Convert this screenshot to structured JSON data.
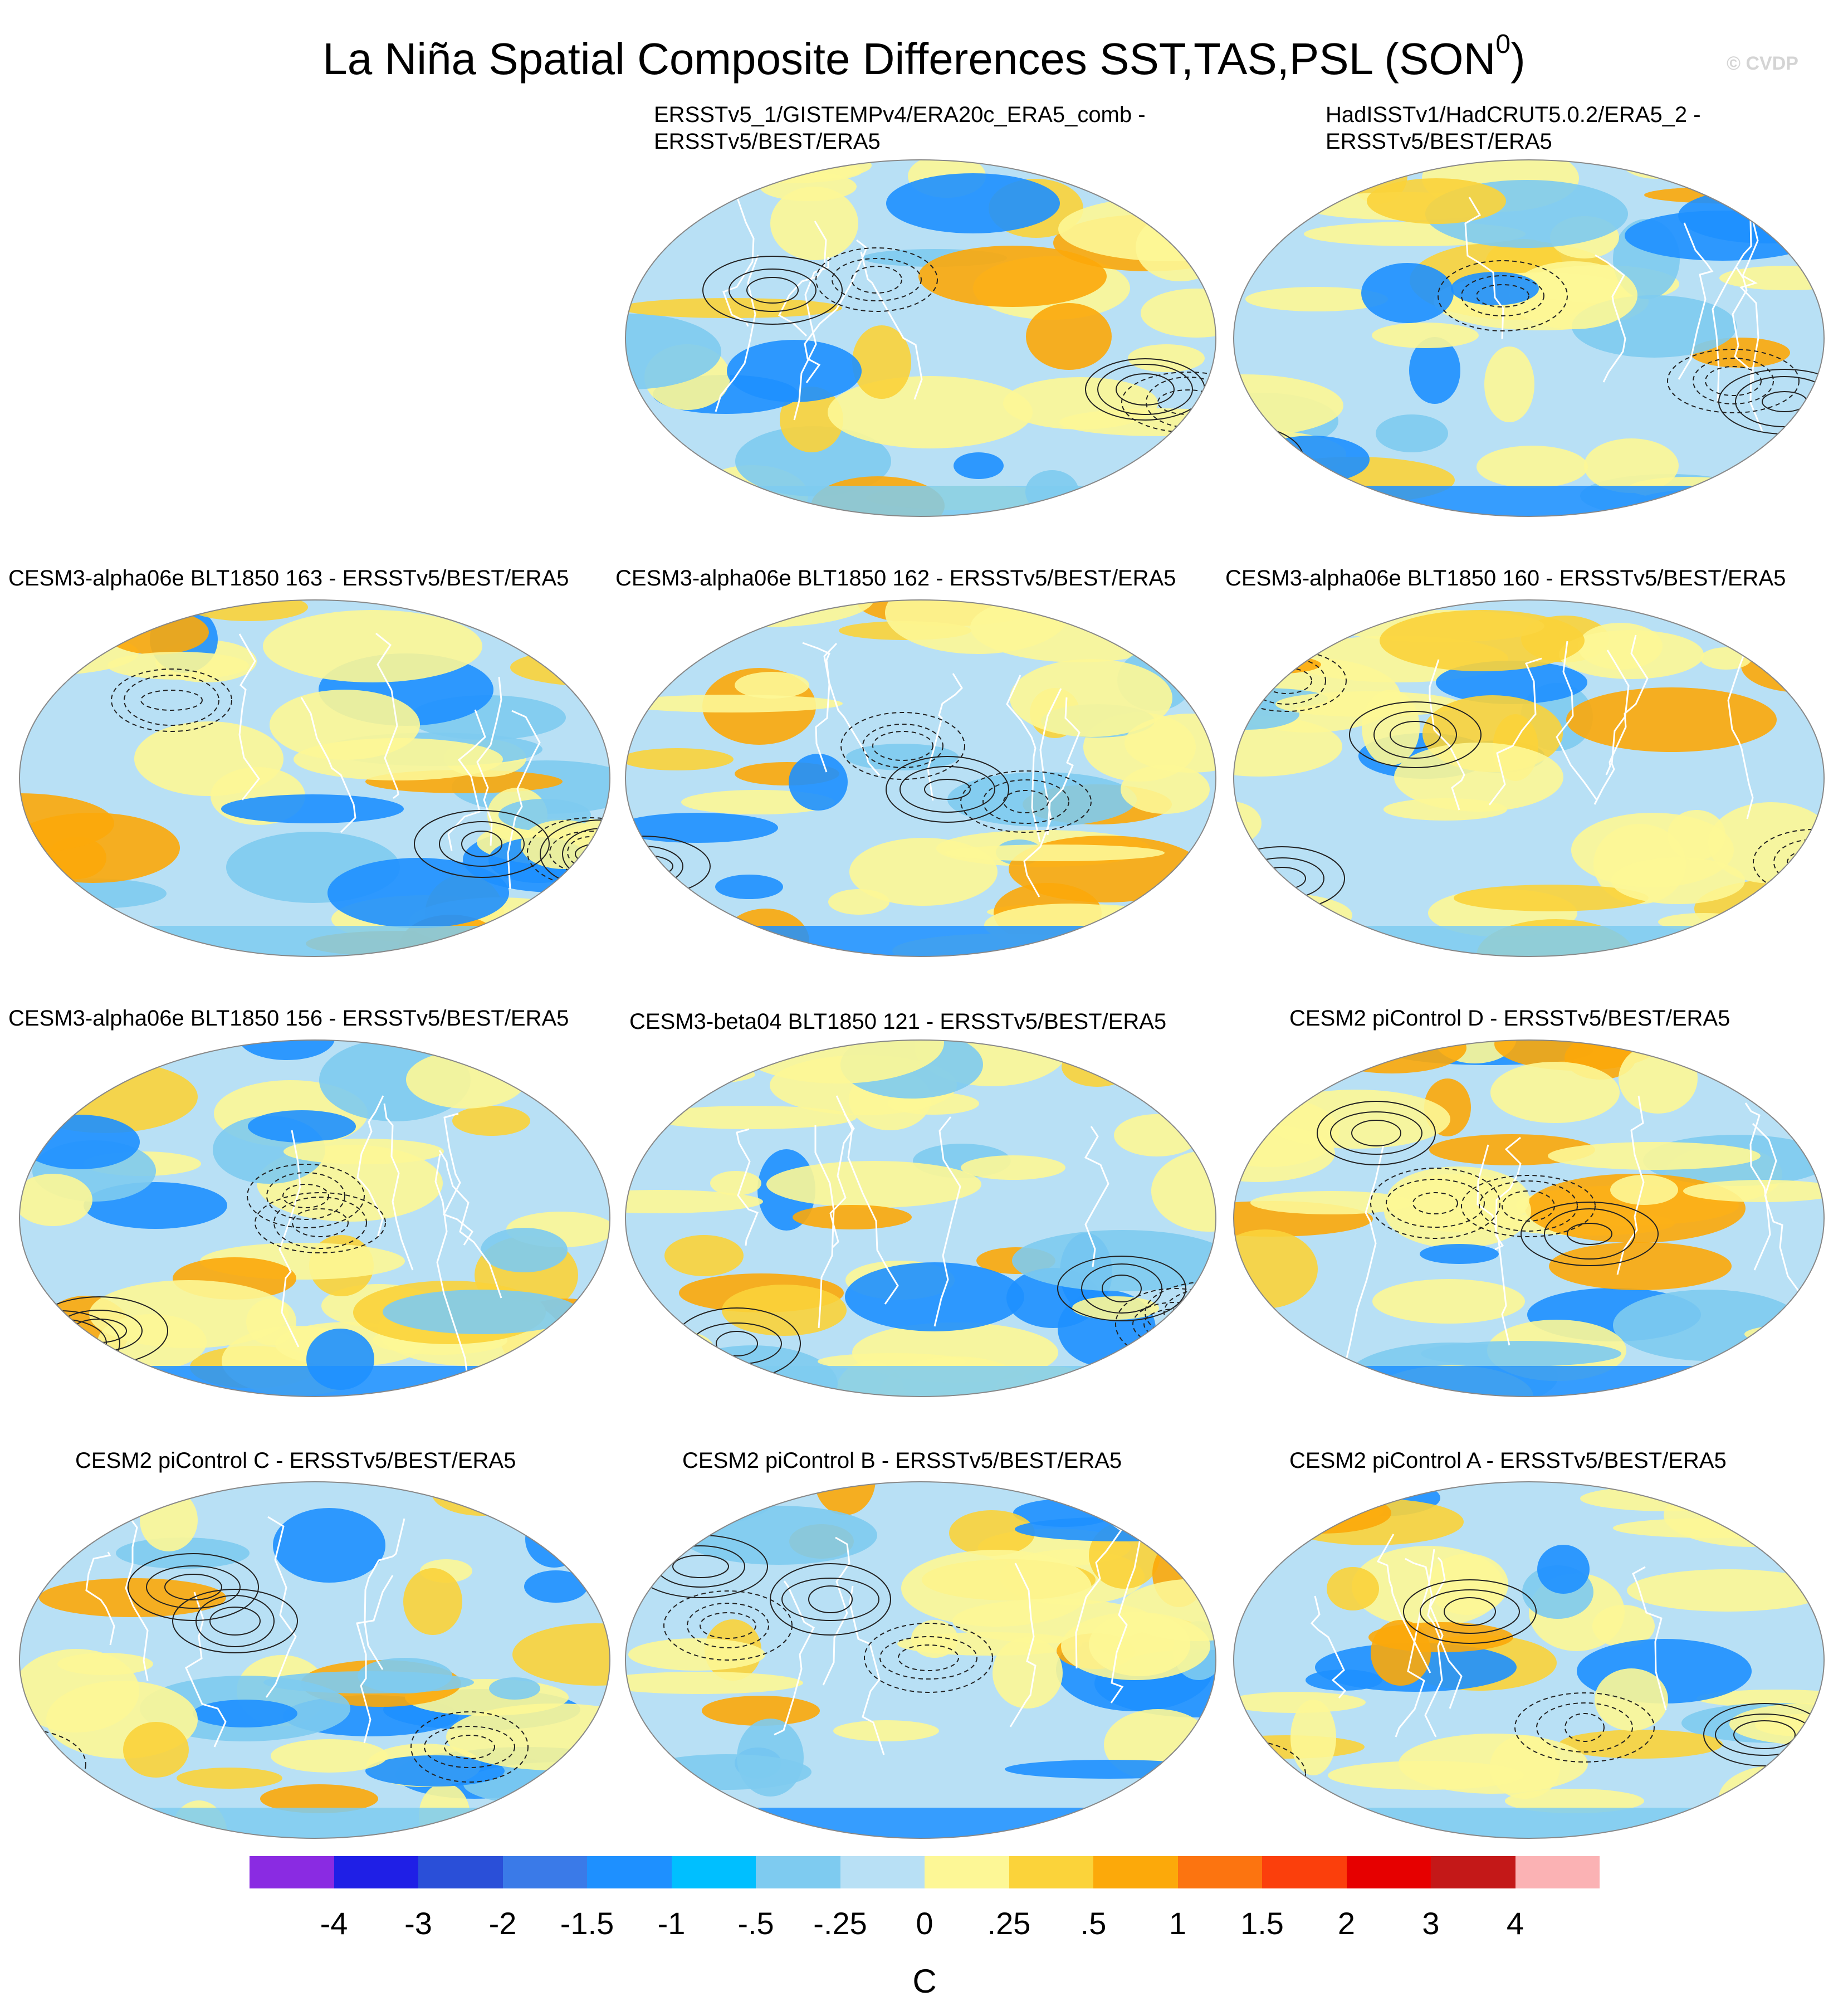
{
  "figure": {
    "title": "La Niña Spatial Composite Differences SST,TAS,PSL (SON",
    "title_superscript": "0",
    "title_close": ")",
    "copyright": "© CVDP"
  },
  "panels": [
    {
      "line1": "ERSSTv5_1/GISTEMPv4/ERA20c_ERA5_comb -",
      "line2": "ERSSTv5/BEST/ERA5"
    },
    {
      "line1": "HadISSTv1/HadCRUT5.0.2/ERA5_2 -",
      "line2": "ERSSTv5/BEST/ERA5"
    },
    {
      "line1": "CESM3-alpha06e BLT1850 163 - ERSSTv5/BEST/ERA5"
    },
    {
      "line1": "CESM3-alpha06e BLT1850 162 - ERSSTv5/BEST/ERA5"
    },
    {
      "line1": "CESM3-alpha06e BLT1850 160 - ERSSTv5/BEST/ERA5"
    },
    {
      "line1": "CESM3-alpha06e BLT1850 156 - ERSSTv5/BEST/ERA5"
    },
    {
      "line1": "CESM3-beta04 BLT1850 121 - ERSSTv5/BEST/ERA5"
    },
    {
      "line1": "CESM2 piControl D - ERSSTv5/BEST/ERA5"
    },
    {
      "line1": "CESM2 piControl C - ERSSTv5/BEST/ERA5"
    },
    {
      "line1": "CESM2 piControl B - ERSSTv5/BEST/ERA5"
    },
    {
      "line1": "CESM2 piControl A - ERSSTv5/BEST/ERA5"
    }
  ],
  "colorbar": {
    "colors": [
      "#8a2be2",
      "#1f1fe6",
      "#2a4fd8",
      "#3a7ae8",
      "#1e90ff",
      "#00bfff",
      "#7ecbf0",
      "#b8e0f5",
      "#fdf796",
      "#fbd33a",
      "#fca90a",
      "#fc7410",
      "#fb3f0c",
      "#e60000",
      "#c41818",
      "#fbb2b4"
    ],
    "labels": [
      "-4",
      "-3",
      "-2",
      "-1.5",
      "-1",
      "-.5",
      "-.25",
      "0",
      ".25",
      ".5",
      "1",
      "1.5",
      "2",
      "3",
      "4"
    ],
    "units": "C"
  },
  "map_colors": {
    "ocean_neg_light": "#b8e0f5",
    "ocean_pos_light": "#fdf796",
    "neg_mid": "#7ecbf0",
    "pos_mid": "#fbd33a",
    "pos_strong": "#fca90a",
    "neg_strong": "#1e90ff",
    "coast": "#ffffff",
    "contour": "#222222"
  }
}
